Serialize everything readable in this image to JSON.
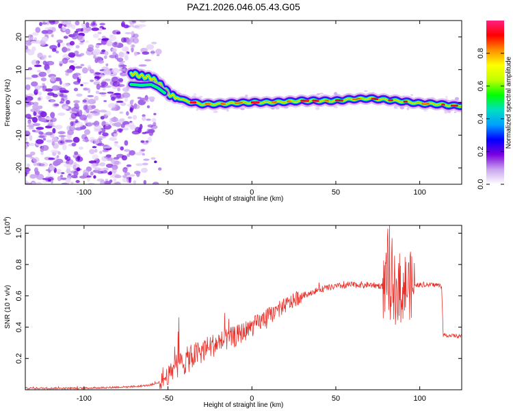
{
  "figure": {
    "title": "PAZ1.2026.046.05.43.G05"
  },
  "chart_data": [
    {
      "type": "heatmap",
      "name": "spectrogram",
      "xlabel": "Height of straight line (km)",
      "ylabel": "Frequency (Hz)",
      "xlim": [
        -135,
        125
      ],
      "ylim": [
        -25,
        25
      ],
      "xticks": [
        -100,
        -50,
        0,
        50,
        100
      ],
      "yticks": [
        -20,
        -10,
        0,
        10,
        20
      ],
      "noise_region_x_max": -60,
      "signal_track": {
        "x": [
          -72,
          -66,
          -60,
          -56,
          -52,
          -48,
          -44,
          -40,
          -30,
          -20,
          -10,
          0,
          10,
          20,
          30,
          40,
          50,
          60,
          70,
          80,
          90,
          100,
          110,
          120,
          125
        ],
        "y": [
          9,
          8,
          7.5,
          6,
          4,
          2,
          1.5,
          0.5,
          -0.5,
          -0.5,
          -0.2,
          0,
          0,
          0.2,
          0.5,
          0.5,
          0.5,
          1.0,
          1.2,
          0.8,
          0.3,
          -0.3,
          -0.5,
          -1.0,
          -1.0
        ]
      },
      "colorbar": {
        "label": "Normalized spectral amplitude",
        "range": [
          0,
          1
        ],
        "ticks": [
          "0.0",
          "0.2",
          "0.4",
          "0.6",
          "0.8"
        ],
        "colors": [
          "#ffffff",
          "#c9a4ee",
          "#7a00e0",
          "#0000ff",
          "#00a0ff",
          "#00e0c0",
          "#00ff00",
          "#c0ff00",
          "#ffff00",
          "#ff9000",
          "#ff0000",
          "#ff2080"
        ]
      }
    },
    {
      "type": "line",
      "name": "snr",
      "xlabel": "Height of straight line (km)",
      "ylabel": "SNR (10 * v/v)",
      "scale_label": "(x10",
      "scale_exponent": "4",
      "scale_suffix": ")",
      "xlim": [
        -135,
        125
      ],
      "ylim": [
        0,
        1.05
      ],
      "xticks": [
        -100,
        -50,
        0,
        50,
        100
      ],
      "yticks": [
        0.2,
        0.4,
        0.6,
        0.8,
        1.0
      ],
      "ytick_labels": [
        "0.2",
        "0.4",
        "0.6",
        "0.8",
        "1.0"
      ],
      "color": "#e8302a",
      "trend": {
        "x": [
          -135,
          -100,
          -70,
          -60,
          -55,
          -50,
          -45,
          -40,
          -30,
          -20,
          -10,
          0,
          10,
          20,
          30,
          40,
          50,
          60,
          70,
          80,
          90,
          100,
          110,
          113,
          114,
          125
        ],
        "y": [
          0.01,
          0.01,
          0.02,
          0.03,
          0.05,
          0.09,
          0.15,
          0.18,
          0.25,
          0.3,
          0.34,
          0.4,
          0.47,
          0.54,
          0.6,
          0.64,
          0.66,
          0.67,
          0.67,
          0.66,
          0.66,
          0.67,
          0.67,
          0.66,
          0.35,
          0.34
        ]
      }
    }
  ]
}
